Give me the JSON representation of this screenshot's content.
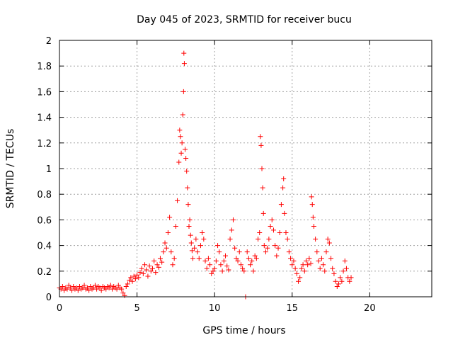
{
  "chart_data": {
    "type": "scatter",
    "title": "Day 045 of 2023, SRMTID for receiver bucu",
    "xlabel": "GPS time / hours",
    "ylabel": "SRMTID / TECUs",
    "xlim": [
      0,
      24
    ],
    "ylim": [
      0,
      2
    ],
    "xticks": [
      0,
      5,
      10,
      15,
      20
    ],
    "yticks": [
      0,
      0.2,
      0.4,
      0.6,
      0.8,
      1,
      1.2,
      1.4,
      1.6,
      1.8,
      2
    ],
    "xtick_labels": [
      "0",
      "5",
      "10",
      "15",
      "20"
    ],
    "ytick_labels": [
      "0",
      "0.2",
      "0.4",
      "0.6",
      "0.8",
      "1",
      "1.2",
      "1.4",
      "1.6",
      "1.8",
      "2"
    ],
    "grid": true,
    "marker": "+",
    "color": "#ff0000",
    "series": [
      {
        "name": "SRMTID",
        "points": [
          [
            0.0,
            0.07
          ],
          [
            0.1,
            0.06
          ],
          [
            0.2,
            0.08
          ],
          [
            0.3,
            0.05
          ],
          [
            0.4,
            0.07
          ],
          [
            0.5,
            0.06
          ],
          [
            0.6,
            0.09
          ],
          [
            0.7,
            0.07
          ],
          [
            0.8,
            0.05
          ],
          [
            0.9,
            0.08
          ],
          [
            1.0,
            0.06
          ],
          [
            1.1,
            0.07
          ],
          [
            1.2,
            0.05
          ],
          [
            1.3,
            0.08
          ],
          [
            1.4,
            0.06
          ],
          [
            1.5,
            0.07
          ],
          [
            1.6,
            0.09
          ],
          [
            1.7,
            0.06
          ],
          [
            1.8,
            0.07
          ],
          [
            1.9,
            0.05
          ],
          [
            2.0,
            0.08
          ],
          [
            2.1,
            0.06
          ],
          [
            2.2,
            0.07
          ],
          [
            2.3,
            0.09
          ],
          [
            2.4,
            0.06
          ],
          [
            2.5,
            0.08
          ],
          [
            2.6,
            0.07
          ],
          [
            2.7,
            0.05
          ],
          [
            2.8,
            0.08
          ],
          [
            2.9,
            0.07
          ],
          [
            3.0,
            0.06
          ],
          [
            3.1,
            0.08
          ],
          [
            3.2,
            0.07
          ],
          [
            3.3,
            0.09
          ],
          [
            3.4,
            0.06
          ],
          [
            3.5,
            0.08
          ],
          [
            3.6,
            0.07
          ],
          [
            3.7,
            0.06
          ],
          [
            3.8,
            0.09
          ],
          [
            3.9,
            0.07
          ],
          [
            4.0,
            0.06
          ],
          [
            4.1,
            0.03
          ],
          [
            4.2,
            0.01
          ],
          [
            4.3,
            0.08
          ],
          [
            4.4,
            0.1
          ],
          [
            4.5,
            0.13
          ],
          [
            4.6,
            0.15
          ],
          [
            4.7,
            0.12
          ],
          [
            4.8,
            0.16
          ],
          [
            4.9,
            0.14
          ],
          [
            5.0,
            0.17
          ],
          [
            5.1,
            0.15
          ],
          [
            5.2,
            0.19
          ],
          [
            5.3,
            0.22
          ],
          [
            5.4,
            0.18
          ],
          [
            5.5,
            0.25
          ],
          [
            5.6,
            0.21
          ],
          [
            5.7,
            0.16
          ],
          [
            5.8,
            0.24
          ],
          [
            5.9,
            0.2
          ],
          [
            6.0,
            0.22
          ],
          [
            6.1,
            0.28
          ],
          [
            6.2,
            0.19
          ],
          [
            6.3,
            0.25
          ],
          [
            6.4,
            0.23
          ],
          [
            6.5,
            0.3
          ],
          [
            6.6,
            0.27
          ],
          [
            6.7,
            0.35
          ],
          [
            6.8,
            0.42
          ],
          [
            6.9,
            0.38
          ],
          [
            7.0,
            0.5
          ],
          [
            7.1,
            0.62
          ],
          [
            7.2,
            0.35
          ],
          [
            7.3,
            0.25
          ],
          [
            7.4,
            0.3
          ],
          [
            7.5,
            0.55
          ],
          [
            7.6,
            0.75
          ],
          [
            7.7,
            1.05
          ],
          [
            7.75,
            1.3
          ],
          [
            7.8,
            1.25
          ],
          [
            7.85,
            1.12
          ],
          [
            7.9,
            1.2
          ],
          [
            7.95,
            1.42
          ],
          [
            8.0,
            1.6
          ],
          [
            8.02,
            1.9
          ],
          [
            8.05,
            1.82
          ],
          [
            8.1,
            1.15
          ],
          [
            8.15,
            1.08
          ],
          [
            8.2,
            0.98
          ],
          [
            8.25,
            0.85
          ],
          [
            8.3,
            0.72
          ],
          [
            8.35,
            0.55
          ],
          [
            8.4,
            0.6
          ],
          [
            8.45,
            0.48
          ],
          [
            8.5,
            0.42
          ],
          [
            8.55,
            0.36
          ],
          [
            8.6,
            0.3
          ],
          [
            8.7,
            0.38
          ],
          [
            8.8,
            0.45
          ],
          [
            8.9,
            0.35
          ],
          [
            9.0,
            0.3
          ],
          [
            9.1,
            0.4
          ],
          [
            9.2,
            0.5
          ],
          [
            9.3,
            0.45
          ],
          [
            9.4,
            0.28
          ],
          [
            9.5,
            0.22
          ],
          [
            9.6,
            0.3
          ],
          [
            9.7,
            0.25
          ],
          [
            9.8,
            0.18
          ],
          [
            9.9,
            0.2
          ],
          [
            10.0,
            0.22
          ],
          [
            10.1,
            0.28
          ],
          [
            10.2,
            0.4
          ],
          [
            10.3,
            0.35
          ],
          [
            10.4,
            0.25
          ],
          [
            10.5,
            0.2
          ],
          [
            10.6,
            0.28
          ],
          [
            10.7,
            0.32
          ],
          [
            10.8,
            0.24
          ],
          [
            10.9,
            0.21
          ],
          [
            11.0,
            0.45
          ],
          [
            11.1,
            0.52
          ],
          [
            11.2,
            0.6
          ],
          [
            11.3,
            0.38
          ],
          [
            11.4,
            0.3
          ],
          [
            11.5,
            0.28
          ],
          [
            11.6,
            0.35
          ],
          [
            11.7,
            0.25
          ],
          [
            11.8,
            0.22
          ],
          [
            11.9,
            0.2
          ],
          [
            12.0,
            0.0
          ],
          [
            12.1,
            0.35
          ],
          [
            12.2,
            0.3
          ],
          [
            12.3,
            0.25
          ],
          [
            12.4,
            0.28
          ],
          [
            12.5,
            0.2
          ],
          [
            12.6,
            0.32
          ],
          [
            12.7,
            0.3
          ],
          [
            12.8,
            0.45
          ],
          [
            12.9,
            0.5
          ],
          [
            12.95,
            1.25
          ],
          [
            13.0,
            1.18
          ],
          [
            13.05,
            1.0
          ],
          [
            13.1,
            0.85
          ],
          [
            13.15,
            0.65
          ],
          [
            13.2,
            0.4
          ],
          [
            13.3,
            0.35
          ],
          [
            13.4,
            0.38
          ],
          [
            13.5,
            0.45
          ],
          [
            13.6,
            0.55
          ],
          [
            13.7,
            0.6
          ],
          [
            13.8,
            0.52
          ],
          [
            13.9,
            0.4
          ],
          [
            14.0,
            0.32
          ],
          [
            14.1,
            0.38
          ],
          [
            14.2,
            0.5
          ],
          [
            14.3,
            0.72
          ],
          [
            14.4,
            0.85
          ],
          [
            14.45,
            0.92
          ],
          [
            14.5,
            0.65
          ],
          [
            14.6,
            0.5
          ],
          [
            14.7,
            0.45
          ],
          [
            14.8,
            0.35
          ],
          [
            14.9,
            0.3
          ],
          [
            15.0,
            0.25
          ],
          [
            15.1,
            0.28
          ],
          [
            15.2,
            0.22
          ],
          [
            15.3,
            0.18
          ],
          [
            15.4,
            0.12
          ],
          [
            15.5,
            0.15
          ],
          [
            15.6,
            0.22
          ],
          [
            15.7,
            0.25
          ],
          [
            15.8,
            0.2
          ],
          [
            15.9,
            0.28
          ],
          [
            16.0,
            0.25
          ],
          [
            16.1,
            0.3
          ],
          [
            16.2,
            0.26
          ],
          [
            16.25,
            0.78
          ],
          [
            16.3,
            0.72
          ],
          [
            16.35,
            0.62
          ],
          [
            16.4,
            0.55
          ],
          [
            16.5,
            0.45
          ],
          [
            16.6,
            0.35
          ],
          [
            16.7,
            0.28
          ],
          [
            16.8,
            0.22
          ],
          [
            16.9,
            0.3
          ],
          [
            17.0,
            0.25
          ],
          [
            17.1,
            0.2
          ],
          [
            17.2,
            0.35
          ],
          [
            17.3,
            0.45
          ],
          [
            17.4,
            0.42
          ],
          [
            17.5,
            0.3
          ],
          [
            17.6,
            0.22
          ],
          [
            17.7,
            0.18
          ],
          [
            17.8,
            0.12
          ],
          [
            17.9,
            0.08
          ],
          [
            18.0,
            0.1
          ],
          [
            18.1,
            0.15
          ],
          [
            18.2,
            0.12
          ],
          [
            18.3,
            0.2
          ],
          [
            18.4,
            0.28
          ],
          [
            18.5,
            0.22
          ],
          [
            18.6,
            0.15
          ],
          [
            18.7,
            0.12
          ],
          [
            18.8,
            0.15
          ]
        ]
      }
    ]
  }
}
